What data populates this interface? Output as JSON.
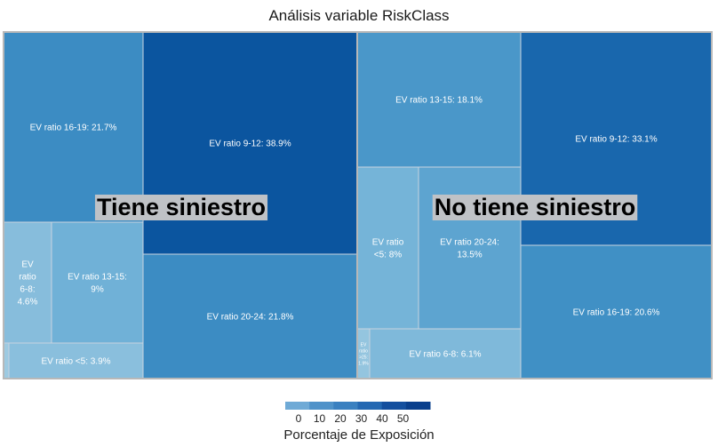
{
  "chart_data": {
    "type": "treemap",
    "title": "Análisis variable RiskClass",
    "value_label": "Porcentaje de Exposición",
    "groups": [
      {
        "name": "Tiene siniestro",
        "items": [
          {
            "label": "EV ratio 9-12: 38.9%",
            "category": "EV ratio 9-12",
            "value": 38.9
          },
          {
            "label": "EV ratio 16-19: 21.7%",
            "category": "EV ratio 16-19",
            "value": 21.7
          },
          {
            "label": "EV ratio 20-24: 21.8%",
            "category": "EV ratio 20-24",
            "value": 21.8
          },
          {
            "label": "EV ratio 13-15: 9%",
            "category": "EV ratio 13-15",
            "value": 9.0
          },
          {
            "label": "EV ratio 6-8: 4.6%",
            "category": "EV ratio 6-8",
            "value": 4.6
          },
          {
            "label": "EV ratio <5: 3.9%",
            "category": "EV ratio <5",
            "value": 3.9
          },
          {
            "label": "",
            "category": "EV ratio >25",
            "value": 0.1
          }
        ]
      },
      {
        "name": "No tiene siniestro",
        "items": [
          {
            "label": "EV ratio 9-12: 33.1%",
            "category": "EV ratio 9-12",
            "value": 33.1
          },
          {
            "label": "EV ratio 16-19: 20.6%",
            "category": "EV ratio 16-19",
            "value": 20.6
          },
          {
            "label": "EV ratio 13-15: 18.1%",
            "category": "EV ratio 13-15",
            "value": 18.1
          },
          {
            "label": "EV ratio 20-24: 13.5%",
            "category": "EV ratio 20-24",
            "value": 13.5
          },
          {
            "label": "EV ratio <5: 8%",
            "category": "EV ratio <5",
            "value": 8.0
          },
          {
            "label": "EV ratio 6-8: 6.1%",
            "category": "EV ratio 6-8",
            "value": 6.1
          },
          {
            "label": "EV ratio >25: 1.9%",
            "category": "EV ratio >25",
            "value": 1.9
          }
        ]
      }
    ],
    "colorscale": {
      "ticks": [
        "0",
        "10",
        "20",
        "30",
        "40",
        "50"
      ],
      "colors": [
        "#6faad6",
        "#4f92c9",
        "#3a80c0",
        "#2468b2",
        "#144f9e",
        "#0a3f8c"
      ]
    }
  }
}
